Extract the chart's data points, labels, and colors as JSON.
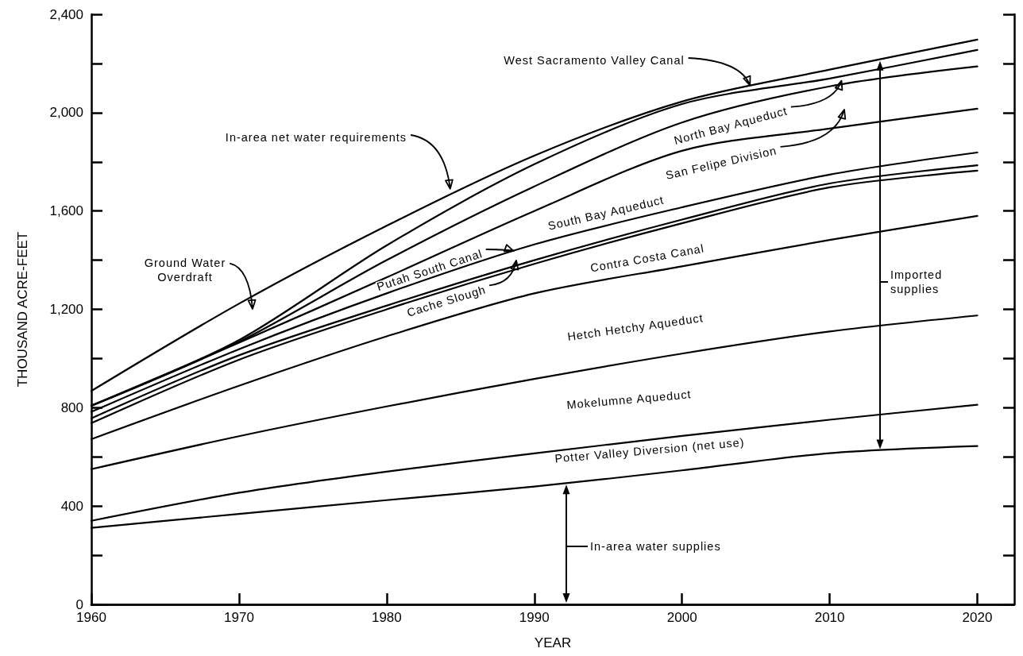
{
  "chart_data": {
    "type": "line",
    "xlabel": "YEAR",
    "ylabel": "THOUSAND ACRE-FEET",
    "x": [
      1960,
      1970,
      1980,
      1990,
      2000,
      2010,
      2020
    ],
    "series": [
      {
        "color": "#000000",
        "values": [
          311,
          368,
          424,
          479,
          545,
          615,
          644
        ]
      },
      {
        "color": "#000000",
        "values": [
          340,
          454,
          540,
          614,
          685,
          751,
          812
        ]
      },
      {
        "color": "#000000",
        "values": [
          550,
          684,
          805,
          917,
          1020,
          1110,
          1175
        ]
      },
      {
        "color": "#000000",
        "values": [
          672,
          889,
          1090,
          1265,
          1375,
          1482,
          1580
        ]
      },
      {
        "color": "#000000",
        "values": [
          737,
          995,
          1200,
          1385,
          1550,
          1696,
          1764
        ]
      },
      {
        "color": "#000000",
        "values": [
          757,
          1013,
          1215,
          1400,
          1565,
          1712,
          1786
        ]
      },
      {
        "color": "#000000",
        "values": [
          783,
          1038,
          1265,
          1464,
          1615,
          1748,
          1838
        ]
      },
      {
        "color": "#000000",
        "values": [
          808,
          1064,
          1330,
          1600,
          1845,
          1935,
          2016
        ]
      },
      {
        "color": "#000000",
        "values": [
          808,
          1068,
          1400,
          1700,
          1960,
          2107,
          2188
        ]
      },
      {
        "color": "#000000",
        "values": [
          808,
          1075,
          1460,
          1790,
          2035,
          2139,
          2255
        ]
      },
      {
        "color": "#000000",
        "values": [
          868,
          1223,
          1540,
          1825,
          2045,
          2175,
          2297
        ]
      }
    ],
    "xlim": [
      1960,
      2022.5
    ],
    "xticks": [
      1960,
      1970,
      1980,
      1990,
      2000,
      2010,
      2020
    ],
    "ylim": [
      0,
      2400
    ],
    "yticks": [
      0,
      {
        "value": 200,
        "label": null
      },
      400,
      {
        "value": 600,
        "label": null
      },
      800,
      {
        "value": 1000,
        "label": null
      },
      {
        "value": 1200,
        "label": "1,200"
      },
      {
        "value": 1400,
        "label": null
      },
      {
        "value": 1600,
        "label": "1,600"
      },
      {
        "value": 1800,
        "label": null
      },
      {
        "value": 2000,
        "label": "2,000"
      },
      {
        "value": 2200,
        "label": null
      },
      {
        "value": 2400,
        "label": "2,400"
      }
    ],
    "marker": "none",
    "annotations": [
      {
        "text": "West Sacramento Valley Canal",
        "x": 2004.6,
        "y": 2111
      },
      {
        "text": "In-area net water requirements",
        "x": 1984.3,
        "y": 1690
      },
      {
        "text": "North Bay Aqueduct",
        "x": 2010.8,
        "y": 2130
      },
      "San Felipe Division",
      "South Bay Aqueduct",
      {
        "text": "Putah South Canal",
        "x": 1988.6,
        "y": 1437
      },
      "Cache Slough",
      "Contra Costa Canal",
      "Hetch Hetchy Aqueduct",
      "Mokelumne Aqueduct",
      "Potter Valley Diversion (net use)",
      "In-area water supplies",
      "Imported\nsupplies",
      "Ground Water\nOverdraft"
    ]
  }
}
